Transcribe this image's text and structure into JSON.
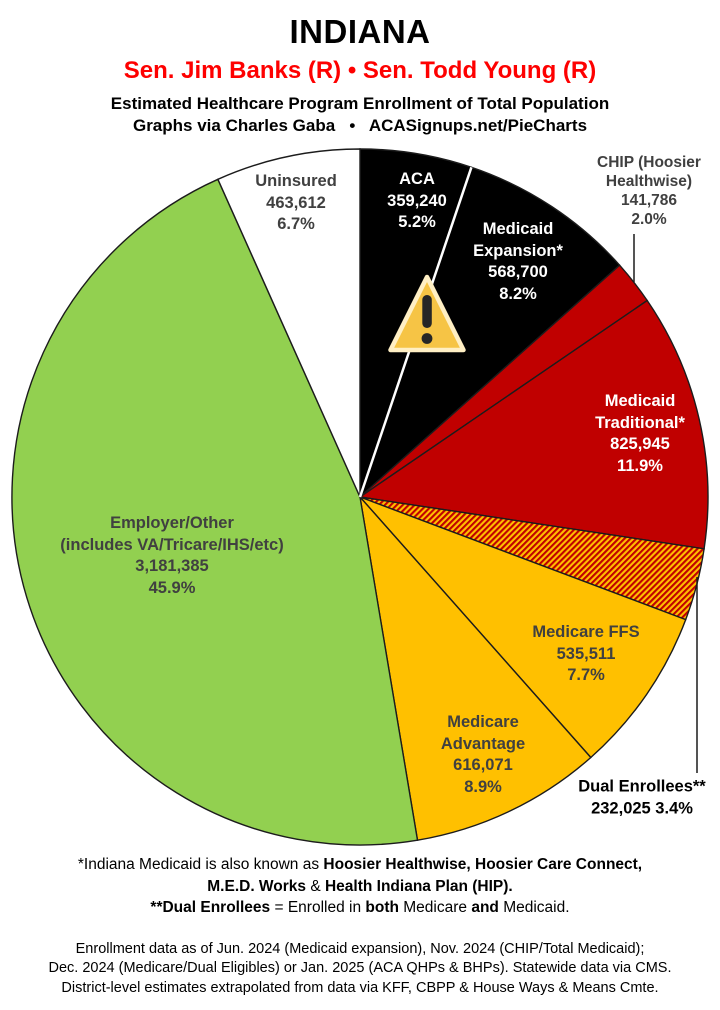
{
  "header": {
    "state": "INDIANA",
    "senators": "Sen. Jim Banks (R) • Sen. Todd Young (R)",
    "subtitle": "Estimated Healthcare Program Enrollment of Total Population",
    "credit": "Graphs via Charles Gaba   •   ACASignups.net/PieCharts"
  },
  "icons": {
    "warning": "warning-triangle-icon (yellow triangle with exclamation mark over ACA / Medicaid Expansion slices)"
  },
  "chart_data": {
    "type": "pie",
    "title": "Estimated Healthcare Program Enrollment of Total Population",
    "region": "Indiana",
    "start": "12 o'clock",
    "direction": "clockwise",
    "slices": [
      {
        "id": "aca",
        "label": "ACA",
        "value": 359240,
        "value_label": "359,240",
        "pct": 5.2,
        "pct_label": "5.2%",
        "color": "#000000",
        "text_color": "#ffffff",
        "label_lines": [
          "ACA",
          "359,240",
          "5.2%"
        ]
      },
      {
        "id": "medicaid-expansion",
        "label": "Medicaid Expansion*",
        "value": 568700,
        "value_label": "568,700",
        "pct": 8.2,
        "pct_label": "8.2%",
        "color": "#000000",
        "text_color": "#ffffff",
        "white_divider_before": true,
        "label_lines": [
          "Medicaid",
          "Expansion*",
          "568,700",
          "8.2%"
        ]
      },
      {
        "id": "chip",
        "label": "CHIP (Hoosier Healthwise)",
        "value": 141786,
        "value_label": "141,786",
        "pct": 2.0,
        "pct_label": "2.0%",
        "color": "#c00000",
        "text_color": "#404040",
        "label_outside": true,
        "label_lines": [
          "CHIP (Hoosier",
          "Healthwise)",
          "141,786",
          "2.0%"
        ]
      },
      {
        "id": "medicaid-traditional",
        "label": "Medicaid Traditional*",
        "value": 825945,
        "value_label": "825,945",
        "pct": 11.9,
        "pct_label": "11.9%",
        "color": "#c00000",
        "text_color": "#ffffff",
        "label_lines": [
          "Medicaid",
          "Traditional*",
          "825,945",
          "11.9%"
        ]
      },
      {
        "id": "dual-enrollees",
        "label": "Dual Enrollees**",
        "value": 232025,
        "value_label": "232,025",
        "pct": 3.4,
        "pct_label": "3.4%",
        "color": "#ffc000",
        "hatch_color": "#c00000",
        "hatch": true,
        "text_color": "#000000",
        "label_outside": true,
        "label_lines": [
          "Dual Enrollees**",
          "232,025 3.4%"
        ]
      },
      {
        "id": "medicare-ffs",
        "label": "Medicare FFS",
        "value": 535511,
        "value_label": "535,511",
        "pct": 7.7,
        "pct_label": "7.7%",
        "color": "#ffc000",
        "text_color": "#404040",
        "label_lines": [
          "Medicare FFS",
          "535,511",
          "7.7%"
        ]
      },
      {
        "id": "medicare-advantage",
        "label": "Medicare Advantage",
        "value": 616071,
        "value_label": "616,071",
        "pct": 8.9,
        "pct_label": "8.9%",
        "color": "#ffc000",
        "text_color": "#404040",
        "label_lines": [
          "Medicare",
          "Advantage",
          "616,071",
          "8.9%"
        ]
      },
      {
        "id": "employer-other",
        "label": "Employer/Other (includes VA/Tricare/IHS/etc)",
        "value": 3181385,
        "value_label": "3,181,385",
        "pct": 45.9,
        "pct_label": "45.9%",
        "color": "#92d050",
        "text_color": "#404040",
        "label_lines": [
          "Employer/Other",
          "(includes VA/Tricare/IHS/etc)",
          "3,181,385",
          "45.9%"
        ]
      },
      {
        "id": "uninsured",
        "label": "Uninsured",
        "value": 463612,
        "value_label": "463,612",
        "pct": 6.7,
        "pct_label": "6.7%",
        "color": "#ffffff",
        "text_color": "#404040",
        "label_lines": [
          "Uninsured",
          "463,612",
          "6.7%"
        ]
      }
    ],
    "layout_hints": {
      "outline_color": "#1c1c1c",
      "divider_color": "#ffffff"
    }
  },
  "footnotes": {
    "medicaid_normal": "*Indiana Medicaid is also known as ",
    "medicaid_bold": "Hoosier Healthwise, Hoosier Care Connect,",
    "medicaid2_bold1": "M.E.D. Works",
    "medicaid2_normal": " & ",
    "medicaid2_bold2": "Health Indiana Plan (HIP).",
    "dual_bold1": "**Dual Enrollees",
    "dual_n1": " = Enrolled in ",
    "dual_bold2": "both",
    "dual_n2": " Medicare ",
    "dual_bold3": "and",
    "dual_n3": " Medicaid."
  },
  "sources": {
    "line1": "Enrollment data as of Jun. 2024 (Medicaid expansion), Nov. 2024 (CHIP/Total Medicaid);",
    "line2": "Dec. 2024 (Medicare/Dual Eligibles) or Jan. 2025 (ACA QHPs & BHPs). Statewide data via CMS.",
    "line3": "District-level estimates extrapolated from data via KFF, CBPP & House Ways & Means Cmte."
  }
}
